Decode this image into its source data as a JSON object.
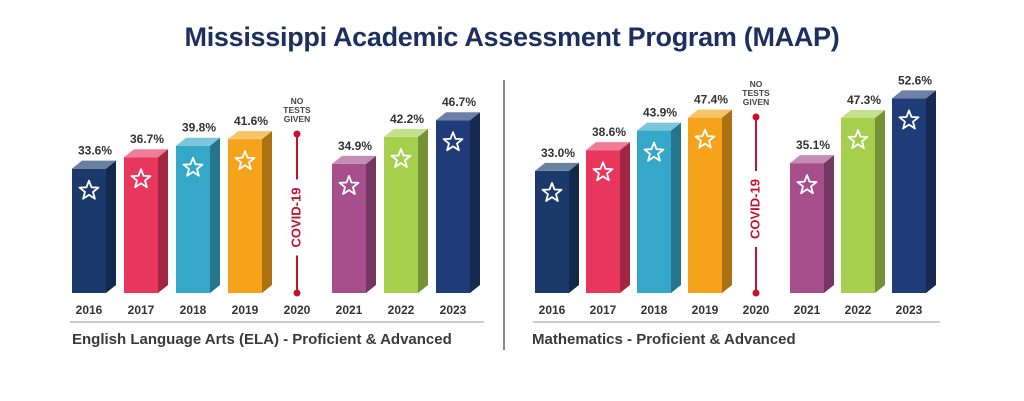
{
  "title": "Mississippi Academic Assessment Program (MAAP)",
  "covid": {
    "label": "COVID-19",
    "note": [
      "NO",
      "TESTS",
      "GIVEN"
    ],
    "color": "#c8102e"
  },
  "colors": {
    "2016": "#1b3a6b",
    "2017": "#e8365d",
    "2018": "#35a7c9",
    "2019": "#f5a31a",
    "2021": "#a64f8c",
    "2022": "#a6cf4e",
    "2023": "#1f3c78"
  },
  "chart_data": [
    {
      "type": "bar",
      "caption": "English Language Arts (ELA) - Proficient & Advanced",
      "categories": [
        "2016",
        "2017",
        "2018",
        "2019",
        "2020",
        "2021",
        "2022",
        "2023"
      ],
      "values": [
        33.6,
        36.7,
        39.8,
        41.6,
        null,
        34.9,
        42.2,
        46.7
      ],
      "labels": [
        "33.6%",
        "36.7%",
        "39.8%",
        "41.6%",
        "",
        "34.9%",
        "42.2%",
        "46.7%"
      ]
    },
    {
      "type": "bar",
      "caption": "Mathematics - Proficient & Advanced",
      "categories": [
        "2016",
        "2017",
        "2018",
        "2019",
        "2020",
        "2021",
        "2022",
        "2023"
      ],
      "values": [
        33.0,
        38.6,
        43.9,
        47.4,
        null,
        35.1,
        47.3,
        52.6
      ],
      "labels": [
        "33.0%",
        "38.6%",
        "43.9%",
        "47.4%",
        "",
        "35.1%",
        "47.3%",
        "52.6%"
      ]
    }
  ]
}
